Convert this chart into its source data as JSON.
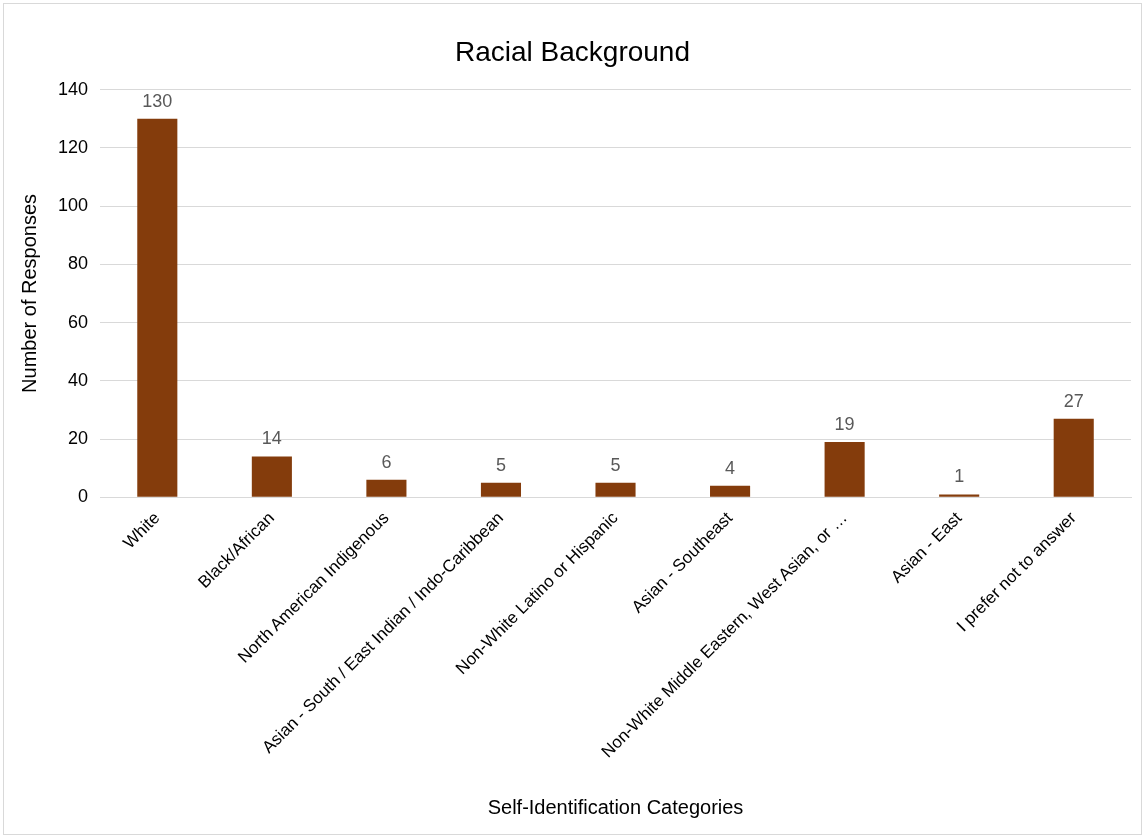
{
  "chart_data": {
    "type": "bar",
    "title": "Racial Background",
    "xlabel": "Self-Identification Categories",
    "ylabel": "Number of Responses",
    "categories": [
      "White",
      "Black/African",
      "North American Indigenous",
      "Asian - South / East Indian / Indo-Caribbean",
      "Non-White Latino or Hispanic",
      "Asian - Southeast",
      "Non-White Middle Eastern, West Asian, or …",
      "Asian - East",
      "I prefer not to answer"
    ],
    "values": [
      130,
      14,
      6,
      5,
      5,
      4,
      19,
      1,
      27
    ],
    "color": "#843c0c",
    "ylim": [
      0,
      140
    ],
    "yticks": [
      0,
      20,
      40,
      60,
      80,
      100,
      120,
      140
    ],
    "grid": "y",
    "data_labels": true,
    "legend": false
  }
}
